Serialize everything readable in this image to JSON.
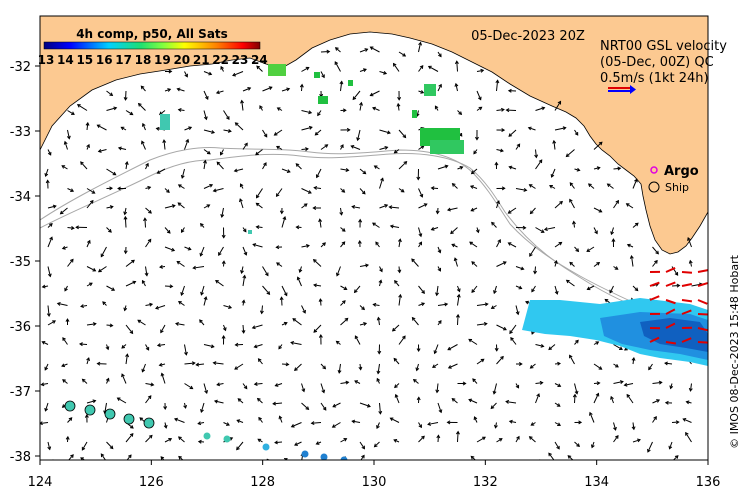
{
  "map": {
    "date_label": "05-Dec-2023 20Z",
    "credit": "© IMOS 08-Dec-2023 15:48 Hobart",
    "sst_legend": {
      "title": "4h comp, p50, All Sats",
      "ticks": [
        "13",
        "14",
        "15",
        "16",
        "17",
        "18",
        "19",
        "20",
        "21",
        "22",
        "23",
        "24"
      ]
    },
    "velocity_legend": {
      "line1": "NRT00 GSL velocity",
      "line1_overlay": "(05-Dec, 00Z) QC",
      "scale": "0.5m/s (1kt 24h)"
    },
    "markers_legend": {
      "argo": "Argo",
      "ship": "Ship"
    },
    "x_ticks": [
      "124",
      "126",
      "128",
      "130",
      "132",
      "134",
      "136"
    ],
    "y_ticks": [
      "-32",
      "-33",
      "-34",
      "-35",
      "-36",
      "-37",
      "-38"
    ],
    "colors": {
      "land": "#fcc991",
      "sea": "#ffffff",
      "isobath": "#a8a8a8",
      "argo_marker": "#e000e0",
      "scale_arrow_red": "#e00000",
      "scale_arrow_blue": "#0000ff"
    },
    "icons": [
      "argo-marker-icon",
      "ship-marker-icon",
      "velocity-arrow-icon"
    ]
  }
}
